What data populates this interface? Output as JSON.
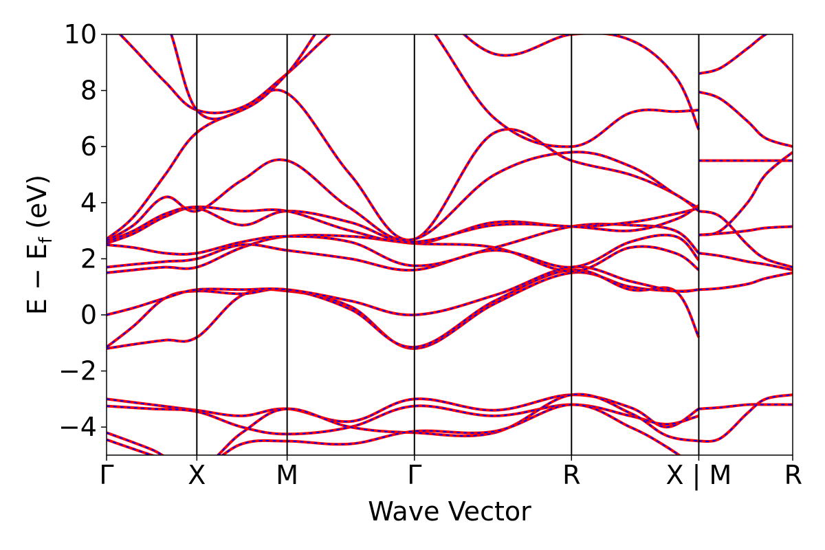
{
  "chart_data": {
    "type": "line",
    "title": "",
    "xlabel": "Wave Vector",
    "ylabel": "E − E",
    "ylabel_sub": "f",
    "ylabel_unit": " (eV)",
    "ylim": [
      -5,
      10
    ],
    "yticks": [
      -4,
      -2,
      0,
      2,
      4,
      6,
      8,
      10
    ],
    "ytick_labels": [
      "−4",
      "−2",
      "0",
      "2",
      "4",
      "6",
      "8",
      "10"
    ],
    "xlim": [
      0,
      7.6
    ],
    "kpoints": [
      {
        "label": "Γ",
        "x": 0
      },
      {
        "label": "X",
        "x": 1.0
      },
      {
        "label": "M",
        "x": 2.0
      },
      {
        "label": "Γ",
        "x": 3.41
      },
      {
        "label": "R",
        "x": 5.15
      },
      {
        "label": "X | M",
        "x": 6.56
      },
      {
        "label": "R",
        "x": 7.6
      }
    ],
    "grid": false,
    "legend": "none",
    "colors": {
      "band_outer": "#ff0000",
      "band_inner": "#0000ff",
      "vline": "#000000"
    },
    "series": [
      {
        "x": [
          0,
          0.3,
          0.65,
          1.0,
          1.5,
          2.0,
          2.7,
          3.41,
          4.3,
          5.15,
          5.8,
          6.3,
          6.56
        ],
        "values": [
          -1.2,
          -1.05,
          -0.9,
          -0.8,
          0.7,
          0.85,
          0.3,
          -1.2,
          0.4,
          1.5,
          1.0,
          0.85,
          0.9
        ]
      },
      {
        "x": [
          0,
          0.3,
          0.65,
          1.0,
          1.5,
          2.0,
          2.7,
          3.41,
          4.3,
          5.15,
          5.8,
          6.3,
          6.56
        ],
        "values": [
          -1.15,
          -0.4,
          0.6,
          0.85,
          0.75,
          0.9,
          0.2,
          -1.15,
          0.5,
          1.6,
          0.9,
          0.85,
          -0.8
        ]
      },
      {
        "x": [
          0,
          0.3,
          0.65,
          1.0,
          1.5,
          2.0,
          2.7,
          3.41,
          4.3,
          5.15,
          5.8,
          6.3,
          6.56
        ],
        "values": [
          0.0,
          0.25,
          0.6,
          0.9,
          0.9,
          0.9,
          0.5,
          0.0,
          0.7,
          1.7,
          1.2,
          0.85,
          0.9
        ]
      },
      {
        "x": [
          0,
          0.3,
          0.65,
          1.0,
          1.5,
          2.0,
          2.7,
          3.41,
          4.3,
          5.15,
          5.8,
          6.3,
          6.56
        ],
        "values": [
          1.5,
          1.6,
          1.7,
          1.7,
          2.4,
          2.8,
          2.8,
          2.55,
          2.4,
          1.55,
          2.4,
          2.2,
          1.6
        ]
      },
      {
        "x": [
          0,
          0.3,
          0.65,
          1.0,
          1.5,
          2.0,
          2.7,
          3.41,
          4.3,
          5.15,
          5.8,
          6.3,
          6.56
        ],
        "values": [
          1.7,
          1.8,
          1.9,
          2.0,
          2.5,
          2.3,
          2.0,
          1.6,
          2.3,
          1.7,
          2.6,
          2.8,
          1.95
        ]
      },
      {
        "x": [
          0,
          0.3,
          0.65,
          1.0,
          1.5,
          2.0,
          2.7,
          3.41,
          4.3,
          5.15,
          5.8,
          6.3,
          6.56
        ],
        "values": [
          2.5,
          2.4,
          2.2,
          2.2,
          2.6,
          2.8,
          2.6,
          1.75,
          2.4,
          3.15,
          3.2,
          3.0,
          2.2
        ]
      },
      {
        "x": [
          0,
          0.3,
          0.65,
          1.0,
          1.5,
          2.0,
          2.7,
          3.41,
          4.3,
          5.15,
          5.8,
          6.3,
          6.56
        ],
        "values": [
          2.55,
          2.9,
          3.5,
          3.8,
          3.2,
          3.7,
          3.3,
          2.55,
          3.3,
          3.15,
          3.3,
          3.6,
          3.8
        ]
      },
      {
        "x": [
          0,
          0.3,
          0.65,
          1.0,
          1.5,
          2.0,
          2.7,
          3.41,
          4.3,
          5.15,
          5.8,
          6.3,
          6.56
        ],
        "values": [
          2.6,
          3.0,
          3.6,
          3.85,
          3.7,
          3.7,
          3.0,
          2.6,
          3.2,
          3.15,
          3.0,
          3.4,
          3.9
        ]
      },
      {
        "x": [
          0,
          0.3,
          0.65,
          1.0,
          1.5,
          2.0,
          2.7,
          3.41,
          4.3,
          5.15,
          5.8,
          6.3,
          6.56
        ],
        "values": [
          2.7,
          3.5,
          5.0,
          6.5,
          7.3,
          7.9,
          5.0,
          2.7,
          6.5,
          5.5,
          5.0,
          4.3,
          3.7
        ]
      },
      {
        "x": [
          0,
          0.3,
          0.65,
          1.0,
          1.5,
          2.0,
          2.7,
          3.41,
          4.3,
          5.15,
          5.8,
          6.3,
          6.56
        ],
        "values": [
          2.65,
          3.2,
          4.2,
          3.7,
          4.8,
          5.5,
          3.8,
          2.7,
          5.0,
          5.8,
          5.3,
          4.3,
          3.8
        ]
      },
      {
        "x": [
          0,
          0.3,
          0.65,
          1.0,
          1.5,
          2.0,
          2.7,
          3.41,
          4.3,
          5.15,
          5.8,
          6.3,
          6.56
        ],
        "values": [
          10.5,
          9.5,
          8.3,
          7.3,
          7.4,
          8.6,
          10.5,
          10.8,
          7.0,
          6.0,
          7.2,
          7.25,
          7.3
        ]
      },
      {
        "x": [
          0,
          0.3,
          0.65,
          1.0,
          1.5,
          2.0,
          2.7,
          3.41,
          4.3,
          5.15,
          5.8,
          6.3,
          6.56
        ],
        "values": [
          11.5,
          11.0,
          10.5,
          7.3,
          7.3,
          8.6,
          11.5,
          11.5,
          9.3,
          10.0,
          9.8,
          8.5,
          6.6
        ]
      },
      {
        "x": [
          0,
          0.5,
          1.0,
          1.5,
          2.0,
          2.7,
          3.41,
          4.3,
          5.15,
          5.8,
          6.2,
          6.56
        ],
        "values": [
          -3.0,
          -3.2,
          -3.4,
          -3.6,
          -3.35,
          -3.8,
          -3.0,
          -3.4,
          -2.85,
          -3.3,
          -4.0,
          -3.35
        ]
      },
      {
        "x": [
          0,
          0.5,
          1.0,
          1.5,
          2.0,
          2.7,
          3.41,
          4.3,
          5.15,
          5.8,
          6.2,
          6.56
        ],
        "values": [
          -3.25,
          -3.35,
          -3.45,
          -4.0,
          -4.25,
          -4.0,
          -3.25,
          -3.6,
          -3.2,
          -3.6,
          -3.9,
          -3.6
        ]
      },
      {
        "x": [
          0,
          0.5,
          1.0,
          1.5,
          2.0,
          2.7,
          3.41,
          4.3,
          5.15,
          5.8,
          6.2,
          6.56
        ],
        "values": [
          -4.2,
          -4.8,
          -5.5,
          -4.2,
          -3.35,
          -4.0,
          -4.2,
          -4.2,
          -2.85,
          -3.5,
          -4.3,
          -4.5
        ]
      },
      {
        "x": [
          0,
          0.5,
          1.0,
          1.5,
          2.0,
          2.7,
          3.41,
          4.3,
          5.15,
          5.8,
          6.2,
          6.56
        ],
        "values": [
          -4.45,
          -5.0,
          -5.5,
          -4.6,
          -4.5,
          -4.6,
          -4.15,
          -4.15,
          -3.2,
          -4.0,
          -4.7,
          -5.5
        ]
      },
      {
        "x": [
          6.56,
          6.8,
          7.1,
          7.3,
          7.6
        ],
        "values": [
          -3.35,
          -3.3,
          -3.2,
          -3.2,
          -3.2
        ]
      },
      {
        "x": [
          6.56,
          6.8,
          7.1,
          7.3,
          7.6
        ],
        "values": [
          -4.5,
          -4.4,
          -3.5,
          -3.0,
          -2.85
        ]
      },
      {
        "x": [
          6.56,
          6.8,
          7.1,
          7.3,
          7.6
        ],
        "values": [
          0.9,
          0.95,
          1.1,
          1.3,
          1.5
        ]
      },
      {
        "x": [
          6.56,
          6.8,
          7.1,
          7.3,
          7.6
        ],
        "values": [
          2.85,
          2.9,
          3.0,
          3.1,
          3.15
        ]
      },
      {
        "x": [
          6.56,
          6.8,
          7.1,
          7.3,
          7.6
        ],
        "values": [
          3.7,
          3.5,
          2.5,
          2.0,
          1.7
        ]
      },
      {
        "x": [
          6.56,
          6.8,
          7.1,
          7.3,
          7.6
        ],
        "values": [
          5.5,
          5.5,
          5.5,
          5.5,
          5.5
        ]
      },
      {
        "x": [
          6.56,
          6.8,
          7.1,
          7.3,
          7.6
        ],
        "values": [
          7.95,
          7.7,
          6.9,
          6.3,
          6.0
        ]
      },
      {
        "x": [
          6.56,
          6.8,
          7.1,
          7.3,
          7.6
        ],
        "values": [
          8.6,
          8.8,
          9.5,
          10.0,
          10.5
        ]
      },
      {
        "x": [
          6.56,
          6.8,
          7.1,
          7.3,
          7.6
        ],
        "values": [
          2.2,
          2.1,
          1.9,
          1.8,
          1.6
        ]
      },
      {
        "x": [
          6.56,
          6.8,
          7.1,
          7.3,
          7.6
        ],
        "values": [
          2.85,
          3.0,
          4.0,
          5.0,
          5.8
        ]
      }
    ]
  }
}
